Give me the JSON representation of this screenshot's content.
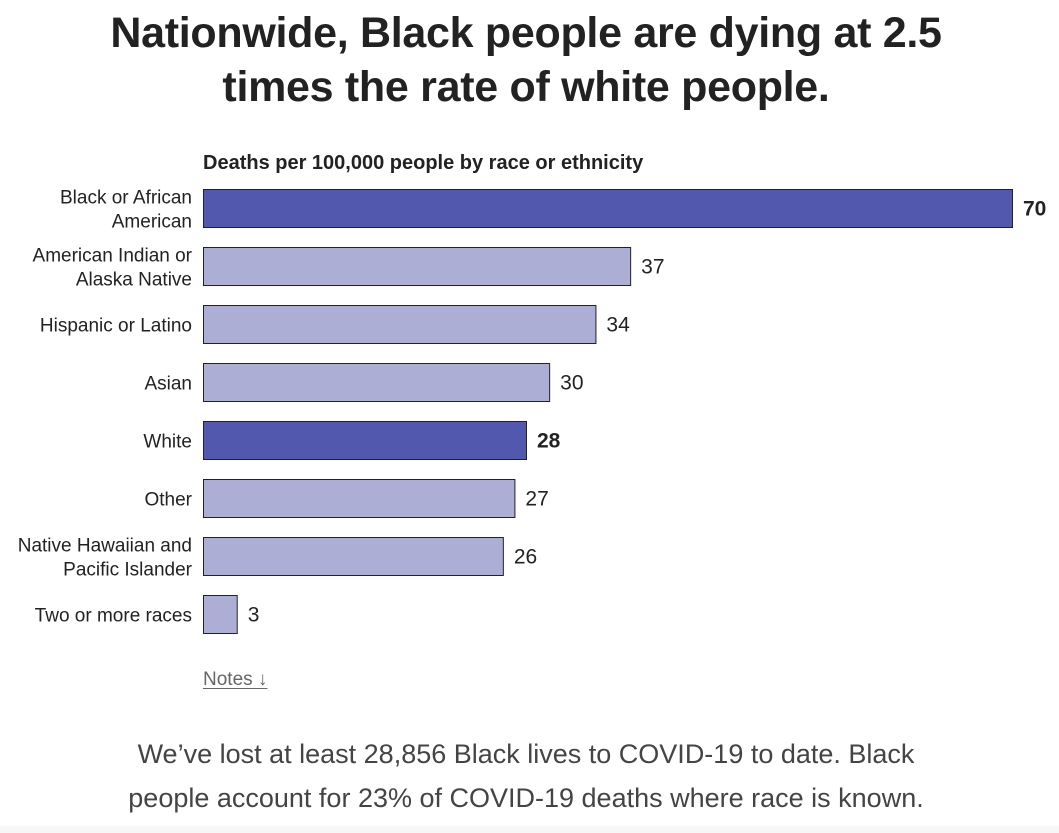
{
  "headline": {
    "line1": "Nationwide, Black people are dying at 2.5",
    "line2": "times the rate of white people."
  },
  "notes_label": "Notes ↓",
  "summary": {
    "line1": "We’ve lost at least 28,856 Black lives to COVID-19 to date. Black",
    "line2": "people account for 23% of COVID-19 deaths where race is known."
  },
  "colors": {
    "highlight": "#5258ad",
    "default": "#acaed6",
    "border": "#222222"
  },
  "chart_data": {
    "type": "bar",
    "orientation": "horizontal",
    "title": "Deaths per 100,000 people by race or ethnicity",
    "xlabel": "",
    "ylabel": "",
    "xlim": [
      0,
      70
    ],
    "grid": false,
    "categories": [
      [
        "Black or African",
        "American"
      ],
      [
        "American Indian or",
        "Alaska Native"
      ],
      [
        "Hispanic or Latino"
      ],
      [
        "Asian"
      ],
      [
        "White"
      ],
      [
        "Other"
      ],
      [
        "Native Hawaiian and",
        "Pacific Islander"
      ],
      [
        "Two or more races"
      ]
    ],
    "values": [
      70,
      37,
      34,
      30,
      28,
      27,
      26,
      3
    ],
    "highlighted": [
      true,
      false,
      false,
      false,
      true,
      false,
      false,
      false
    ]
  }
}
